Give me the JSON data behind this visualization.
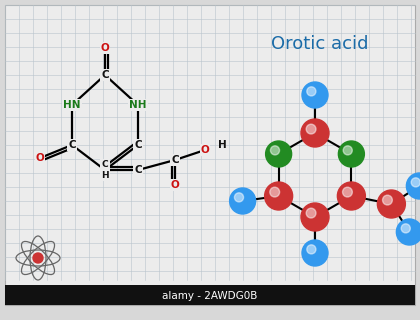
{
  "title": "Orotic acid",
  "title_color": "#1b6ca8",
  "title_fontsize": 13,
  "bg_color": "#d8d8d8",
  "paper_color": "#ececec",
  "grid_color": "#b8c4cc",
  "watermark_text": "alamy - 2AWDG0B",
  "watermark_bg": "#111111",
  "watermark_color": "#ffffff",
  "atom_colors": {
    "N": "#1a7a1a",
    "C": "#111111",
    "O": "#cc1111",
    "H": "#111111"
  }
}
